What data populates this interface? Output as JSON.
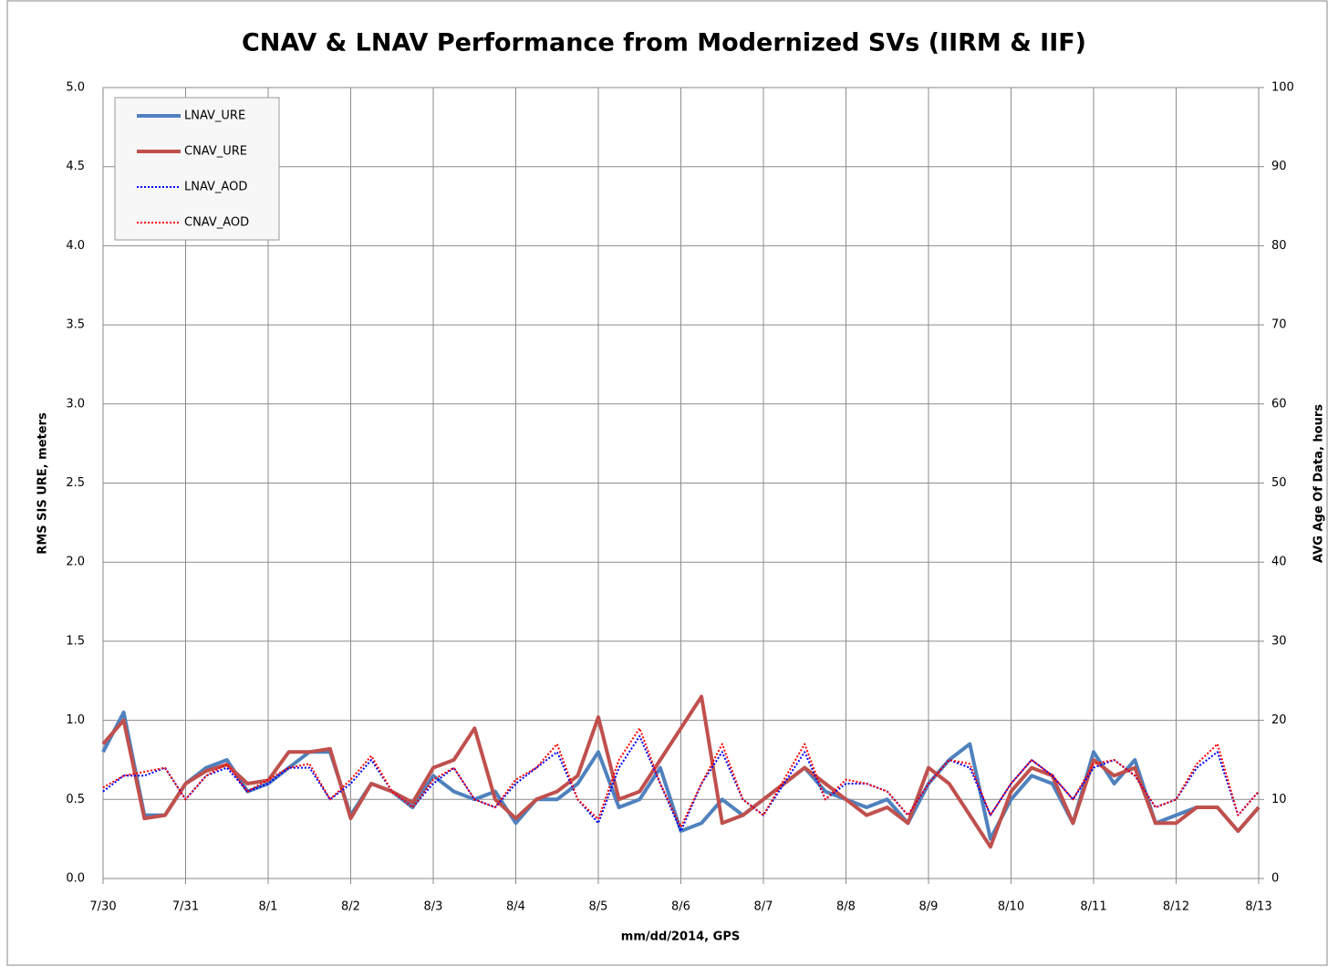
{
  "chart_data": {
    "type": "line",
    "title": "CNAV & LNAV Performance from Modernized SVs (IIRM & IIF)",
    "x_label": "mm/dd/2014, GPS",
    "y_label": "RMS SIS URE, meters",
    "y2_label": "AVG Age Of Data, hours",
    "x": [
      0,
      0.25,
      0.5,
      0.75,
      1,
      1.25,
      1.5,
      1.75,
      2,
      2.25,
      2.5,
      2.75,
      3,
      3.25,
      3.5,
      3.75,
      4,
      4.25,
      4.5,
      4.75,
      5,
      5.25,
      5.5,
      5.75,
      6,
      6.25,
      6.5,
      6.75,
      7,
      7.25,
      7.5,
      7.75,
      8,
      8.25,
      8.5,
      8.75,
      9,
      9.25,
      9.5,
      9.75,
      10,
      10.25,
      10.5,
      10.75,
      11,
      11.25,
      11.5,
      11.75,
      12,
      12.25,
      12.5,
      12.75,
      13,
      13.25,
      13.5,
      13.75,
      14
    ],
    "xlim": [
      0,
      14
    ],
    "xticks": [
      {
        "value": 0,
        "label": "7/30"
      },
      {
        "value": 1,
        "label": "7/31"
      },
      {
        "value": 2,
        "label": "8/1"
      },
      {
        "value": 3,
        "label": "8/2"
      },
      {
        "value": 4,
        "label": "8/3"
      },
      {
        "value": 5,
        "label": "8/4"
      },
      {
        "value": 6,
        "label": "8/5"
      },
      {
        "value": 7,
        "label": "8/6"
      },
      {
        "value": 8,
        "label": "8/7"
      },
      {
        "value": 9,
        "label": "8/8"
      },
      {
        "value": 10,
        "label": "8/9"
      },
      {
        "value": 11,
        "label": "8/10"
      },
      {
        "value": 12,
        "label": "8/11"
      },
      {
        "value": 13,
        "label": "8/12"
      },
      {
        "value": 14,
        "label": "8/13"
      }
    ],
    "ylim": [
      0,
      5
    ],
    "yticks": [
      {
        "value": 0,
        "label": "0.0"
      },
      {
        "value": 0.5,
        "label": "0.5"
      },
      {
        "value": 1,
        "label": "1.0"
      },
      {
        "value": 1.5,
        "label": "1.5"
      },
      {
        "value": 2,
        "label": "2.0"
      },
      {
        "value": 2.5,
        "label": "2.5"
      },
      {
        "value": 3,
        "label": "3.0"
      },
      {
        "value": 3.5,
        "label": "3.5"
      },
      {
        "value": 4,
        "label": "4.0"
      },
      {
        "value": 4.5,
        "label": "4.5"
      },
      {
        "value": 5,
        "label": "5.0"
      }
    ],
    "y2lim": [
      0,
      100
    ],
    "y2ticks": [
      0,
      10,
      20,
      30,
      40,
      50,
      60,
      70,
      80,
      90,
      100
    ],
    "grid": true,
    "legend": "upper left",
    "series": [
      {
        "name": "LNAV_URE",
        "color": "#4f81bd",
        "style": "solid",
        "values": [
          0.8,
          1.05,
          0.4,
          0.4,
          0.6,
          0.7,
          0.75,
          0.55,
          0.6,
          0.7,
          0.8,
          0.8,
          0.4,
          0.6,
          0.55,
          0.45,
          0.65,
          0.55,
          0.5,
          0.55,
          0.35,
          0.5,
          0.5,
          0.6,
          0.8,
          0.45,
          0.5,
          0.7,
          0.3,
          0.35,
          0.5,
          0.4,
          0.5,
          0.6,
          0.7,
          0.55,
          0.5,
          0.45,
          0.5,
          0.35,
          0.6,
          0.75,
          0.85,
          0.25,
          0.5,
          0.65,
          0.6,
          0.35,
          0.8,
          0.6,
          0.75,
          0.35,
          0.4,
          0.45,
          0.45,
          0.3,
          0.45
        ]
      },
      {
        "name": "CNAV_URE",
        "color": "#c0504d",
        "style": "solid",
        "values": [
          0.85,
          1.0,
          0.38,
          0.4,
          0.6,
          0.68,
          0.72,
          0.6,
          0.62,
          0.8,
          0.8,
          0.82,
          0.38,
          0.6,
          0.55,
          0.48,
          0.7,
          0.75,
          0.95,
          0.5,
          0.38,
          0.5,
          0.55,
          0.65,
          1.02,
          0.5,
          0.55,
          0.75,
          0.95,
          1.15,
          0.35,
          0.4,
          0.5,
          0.6,
          0.7,
          0.6,
          0.5,
          0.4,
          0.45,
          0.35,
          0.7,
          0.6,
          0.4,
          0.2,
          0.55,
          0.7,
          0.65,
          0.35,
          0.75,
          0.65,
          0.7,
          0.35,
          0.35,
          0.45,
          0.45,
          0.3,
          0.45
        ]
      },
      {
        "name": "LNAV_AOD",
        "color": "#0000ff",
        "style": "dotted",
        "axis": "y2",
        "values": [
          11,
          13,
          13,
          14,
          10,
          13,
          14,
          11,
          12,
          14,
          14,
          10,
          12,
          15,
          11,
          9,
          12,
          14,
          10,
          9,
          12,
          14,
          16,
          10,
          7,
          14,
          18,
          12,
          6,
          12,
          16,
          10,
          8,
          12,
          16,
          10,
          12,
          12,
          11,
          8,
          12,
          15,
          14,
          8,
          12,
          15,
          13,
          10,
          14,
          15,
          13,
          9,
          10,
          14,
          16,
          8,
          11
        ]
      },
      {
        "name": "CNAV_AOD",
        "color": "#ff0000",
        "style": "dotted",
        "axis": "y2",
        "values": [
          11.5,
          13,
          13.5,
          14,
          10,
          13,
          14.5,
          11,
          12.5,
          14,
          14.5,
          10,
          12.5,
          15.5,
          11,
          9,
          12.5,
          14,
          10,
          9,
          12.5,
          14,
          17,
          10,
          7.5,
          15,
          19,
          12,
          6.5,
          12,
          17,
          10,
          8,
          12.5,
          17,
          10,
          12.5,
          12,
          11,
          8,
          12,
          15,
          14.5,
          8,
          12,
          15,
          13,
          10,
          14.5,
          15,
          13,
          9,
          10,
          14.5,
          17,
          8,
          11
        ]
      }
    ]
  }
}
